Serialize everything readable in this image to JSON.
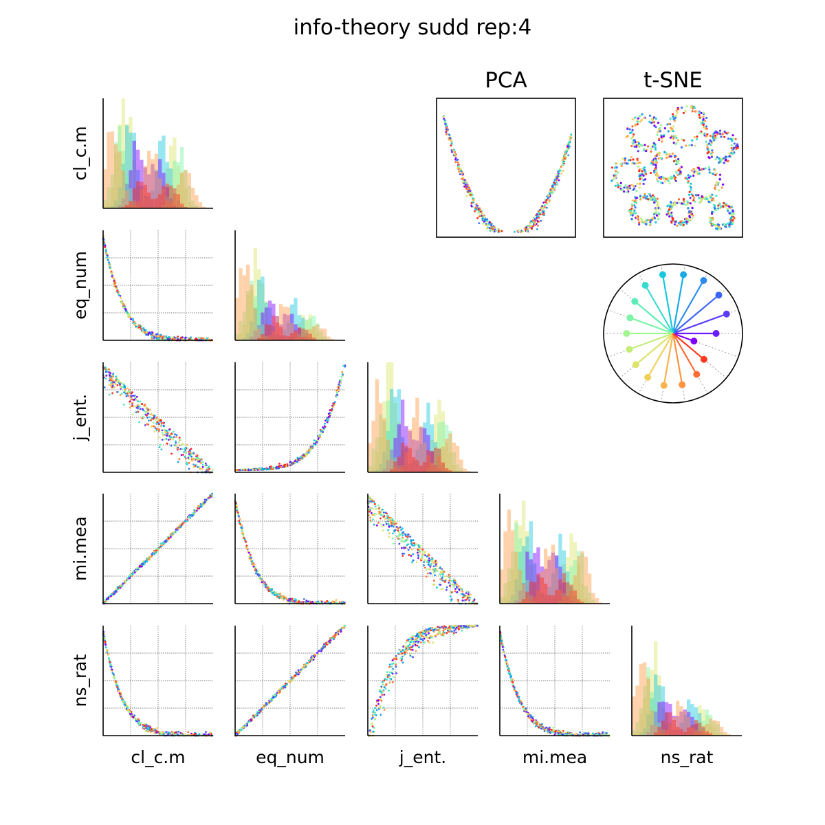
{
  "title": "info-theory sudd rep:4",
  "chart_data": {
    "type": "scatter",
    "layout": "pair-plot",
    "title": "info-theory sudd rep:4",
    "variables": [
      "cl_c.m",
      "eq_num",
      "j_ent.",
      "mi.mea",
      "ns_rat"
    ],
    "grid": true,
    "pair_relations": [
      {
        "x": "cl_c.m",
        "y": "eq_num",
        "shape": "decreasing-convex"
      },
      {
        "x": "cl_c.m",
        "y": "j_ent.",
        "shape": "decreasing-band"
      },
      {
        "x": "eq_num",
        "y": "j_ent.",
        "shape": "increasing-convex"
      },
      {
        "x": "cl_c.m",
        "y": "mi.mea",
        "shape": "linear-increasing"
      },
      {
        "x": "eq_num",
        "y": "mi.mea",
        "shape": "decreasing-convex"
      },
      {
        "x": "j_ent.",
        "y": "mi.mea",
        "shape": "decreasing-band"
      },
      {
        "x": "cl_c.m",
        "y": "ns_rat",
        "shape": "decreasing-convex"
      },
      {
        "x": "eq_num",
        "y": "ns_rat",
        "shape": "linear-increasing"
      },
      {
        "x": "j_ent.",
        "y": "ns_rat",
        "shape": "increasing-concave"
      },
      {
        "x": "mi.mea",
        "y": "ns_rat",
        "shape": "decreasing-convex"
      }
    ],
    "group_colors": [
      "#7f00ff",
      "#5a3cfb",
      "#3673f5",
      "#1a9ee8",
      "#18c8dd",
      "#4be3c4",
      "#7cf5a6",
      "#b2f38b",
      "#dce46a",
      "#f8c454",
      "#ff9b45",
      "#ff6a32",
      "#ff2a1a"
    ],
    "projection_panels": [
      "PCA",
      "t-SNE"
    ],
    "radial_legend": {
      "directions_deg": [
        -20,
        0,
        20,
        40,
        60,
        80,
        100,
        120,
        140,
        160,
        180,
        200,
        220,
        240,
        260,
        280,
        300,
        320
      ],
      "lengths": [
        0.32,
        0.62,
        0.82,
        0.86,
        0.88,
        0.86,
        0.86,
        0.8,
        0.72,
        0.66,
        0.67,
        0.67,
        0.7,
        0.73,
        0.76,
        0.75,
        0.68,
        0.58
      ],
      "colors": [
        "#7f00ff",
        "#6a1cfe",
        "#5a3cfb",
        "#3c65f6",
        "#2d8bef",
        "#1aaae6",
        "#18c8dd",
        "#36dbcf",
        "#5cecb7",
        "#7cf5a6",
        "#a1f690",
        "#c4ec78",
        "#dce46a",
        "#f0d05a",
        "#f8b44e",
        "#ff9340",
        "#ff6a32",
        "#ff3a22"
      ]
    }
  }
}
